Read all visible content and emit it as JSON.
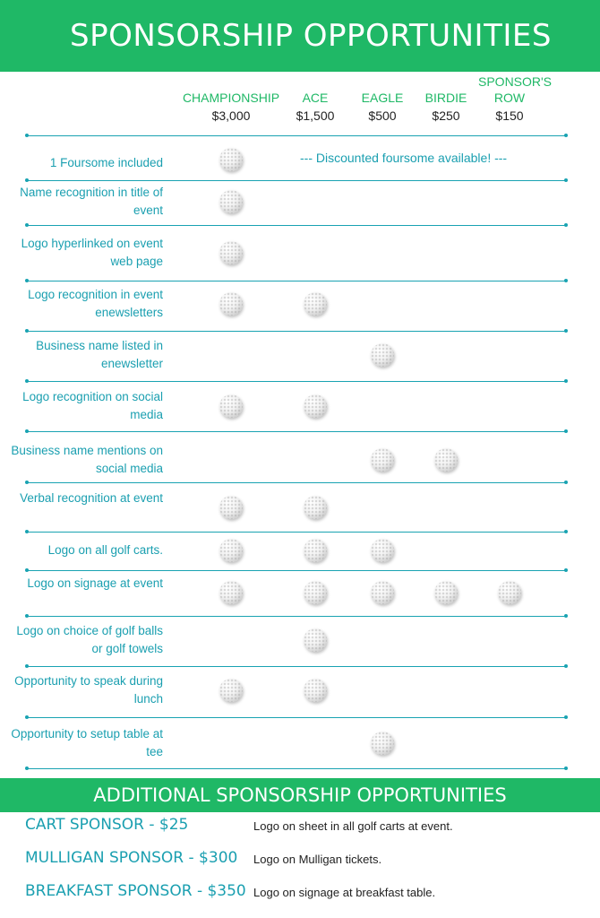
{
  "header": {
    "title": "SPONSORSHIP OPPORTUNITIES"
  },
  "tiers": [
    {
      "name": "CHAMPIONSHIP",
      "price": "$3,000"
    },
    {
      "name": "ACE",
      "price": "$1,500"
    },
    {
      "name": "EAGLE",
      "price": "$500"
    },
    {
      "name": "BIRDIE",
      "price": "$250"
    },
    {
      "name": "SPONSOR'S ROW",
      "price": "$150"
    }
  ],
  "note": "--- Discounted foursome available! ---",
  "rows": [
    {
      "label": "1 Foursome included",
      "included": [
        1,
        0,
        0,
        0,
        0
      ]
    },
    {
      "label": "Name recognition in title of event",
      "included": [
        1,
        0,
        0,
        0,
        0
      ]
    },
    {
      "label": "Logo  hyperlinked on event web page",
      "included": [
        1,
        0,
        0,
        0,
        0
      ]
    },
    {
      "label": "Logo recognition in event enewsletters",
      "included": [
        1,
        1,
        0,
        0,
        0
      ]
    },
    {
      "label": "Business name listed in enewsletter",
      "included": [
        0,
        0,
        1,
        0,
        0
      ]
    },
    {
      "label": "Logo recognition on social media",
      "included": [
        1,
        1,
        0,
        0,
        0
      ]
    },
    {
      "label": "Business name mentions on social media",
      "included": [
        0,
        0,
        1,
        1,
        0
      ]
    },
    {
      "label": "Verbal recognition at event",
      "included": [
        1,
        1,
        0,
        0,
        0
      ]
    },
    {
      "label": "Logo on all golf carts.",
      "included": [
        1,
        1,
        1,
        0,
        0
      ]
    },
    {
      "label": "Logo on signage at event",
      "included": [
        1,
        1,
        1,
        1,
        1
      ]
    },
    {
      "label": "Logo on  choice of golf balls or golf towels",
      "included": [
        0,
        1,
        0,
        0,
        0
      ]
    },
    {
      "label": "Opportunity to speak during lunch",
      "included": [
        1,
        1,
        0,
        0,
        0
      ]
    },
    {
      "label": "Opportunity to setup table at tee",
      "included": [
        0,
        0,
        1,
        0,
        0
      ]
    }
  ],
  "additional": {
    "title": "ADDITIONAL SPONSORSHIP OPPORTUNITIES",
    "items": [
      {
        "name": "CART SPONSOR - $25",
        "description": "Logo on sheet in all golf carts at event."
      },
      {
        "name": "MULLIGAN SPONSOR - $300",
        "description": "Logo on Mulligan tickets."
      },
      {
        "name": "BREAKFAST SPONSOR - $350",
        "description": "Logo on signage at breakfast table."
      }
    ]
  },
  "colors": {
    "green": "#1fb866",
    "teal": "#1a9fb0",
    "rule": "#19a3b2"
  }
}
